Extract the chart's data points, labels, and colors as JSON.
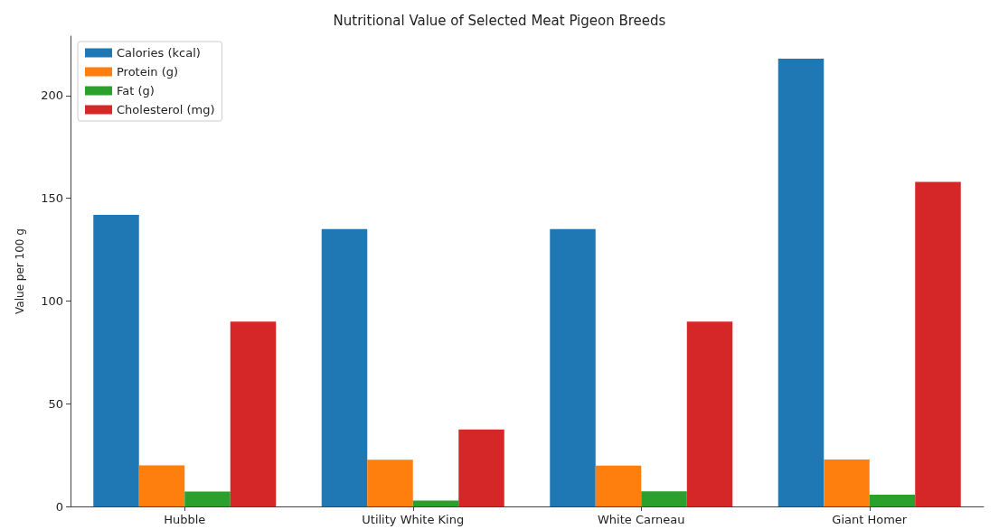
{
  "chart_data": {
    "type": "bar",
    "title": "Nutritional Value of Selected Meat Pigeon Breeds",
    "ylabel": "Value per 100 g",
    "categories": [
      "Hubble",
      "Utility White King",
      "White Carneau",
      "Giant Homer"
    ],
    "series": [
      {
        "name": "Calories (kcal)",
        "color": "#1f77b4",
        "values": [
          142,
          135,
          135,
          218
        ]
      },
      {
        "name": "Protein (g)",
        "color": "#ff7f0e",
        "values": [
          20,
          22.7,
          19.9,
          22.9
        ]
      },
      {
        "name": "Fat (g)",
        "color": "#2ca02c",
        "values": [
          7.3,
          2.9,
          7.4,
          5.7
        ]
      },
      {
        "name": "Cholesterol (mg)",
        "color": "#d62728",
        "values": [
          90,
          37.5,
          90,
          158
        ]
      }
    ],
    "ylim": [
      0,
      229
    ],
    "yticks": [
      0,
      50,
      100,
      150,
      200
    ],
    "grid": false,
    "legend": "top left"
  }
}
